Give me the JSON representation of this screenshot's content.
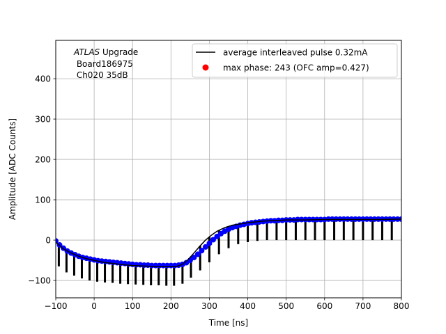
{
  "chart_data": {
    "type": "line",
    "title": "",
    "xlabel": "Time [ns]",
    "ylabel": "Amplitude [ADC Counts]",
    "xlim": [
      -100,
      800
    ],
    "ylim": [
      -143,
      495
    ],
    "x_ticks": [
      -100,
      0,
      100,
      200,
      300,
      400,
      500,
      600,
      700,
      800
    ],
    "y_ticks": [
      -100,
      0,
      100,
      200,
      300,
      400
    ],
    "grid": true,
    "legend_position": "top-right",
    "annotation": {
      "line1_italic": "ATLAS",
      "line1_rest": " Upgrade",
      "line2": " Board186975",
      "line3": " Ch020 35dB"
    },
    "series": [
      {
        "name": "average interleaved pulse 0.32mA",
        "style": "line",
        "color": "#000000",
        "curve": {
          "x": [
            -100,
            -80,
            -60,
            -40,
            -20,
            0,
            25,
            50,
            75,
            100,
            125,
            150,
            175,
            200,
            215,
            230,
            245,
            260,
            275,
            290,
            305,
            320,
            340,
            360,
            380,
            400,
            420,
            440,
            460,
            480,
            500,
            550,
            600,
            650,
            700,
            750,
            800
          ],
          "y": [
            -5,
            -22,
            -32,
            -40,
            -46,
            -50,
            -55,
            -58,
            -61,
            -63,
            -64,
            -65,
            -66,
            -66,
            -65,
            -60,
            -48,
            -32,
            -15,
            0,
            12,
            22,
            31,
            37,
            40,
            43,
            45,
            47,
            48,
            49,
            50,
            50,
            51,
            51,
            51,
            51,
            52
          ]
        },
        "spikes": {
          "x": [
            -92,
            -72,
            -52,
            -32,
            -12,
            8,
            28,
            48,
            68,
            88,
            108,
            128,
            148,
            168,
            188,
            208,
            230,
            252,
            276,
            300,
            325,
            350,
            375,
            400,
            425,
            450,
            475,
            500,
            525,
            550,
            575,
            600,
            625,
            650,
            675,
            700,
            725,
            750,
            775
          ],
          "bottom": [
            -65,
            -80,
            -88,
            -95,
            -100,
            -103,
            -105,
            -106,
            -108,
            -109,
            -110,
            -111,
            -112,
            -112,
            -113,
            -113,
            -108,
            -93,
            -75,
            -55,
            -35,
            -20,
            -10,
            -5,
            -2,
            0,
            0,
            0,
            0,
            0,
            0,
            0,
            0,
            0,
            0,
            0,
            0,
            0,
            0
          ]
        }
      },
      {
        "name": "max phase: 243 (OFC amp=0.427)",
        "style": "markers",
        "color": "#0000ff",
        "x": [
          -100,
          -90,
          -80,
          -70,
          -60,
          -50,
          -40,
          -30,
          -20,
          -10,
          0,
          10,
          20,
          30,
          40,
          50,
          60,
          70,
          80,
          90,
          100,
          110,
          120,
          130,
          140,
          150,
          160,
          170,
          180,
          190,
          200,
          210,
          220,
          230,
          240,
          250,
          260,
          270,
          280,
          290,
          300,
          310,
          320,
          330,
          340,
          350,
          360,
          370,
          380,
          390,
          400,
          410,
          420,
          430,
          440,
          450,
          460,
          470,
          480,
          490,
          500,
          510,
          520,
          530,
          540,
          550,
          560,
          570,
          580,
          590,
          600,
          610,
          620,
          630,
          640,
          650,
          660,
          670,
          680,
          690,
          700,
          710,
          720,
          730,
          740,
          750,
          760,
          770,
          780,
          790,
          800
        ],
        "y": [
          -2,
          -12,
          -20,
          -27,
          -32,
          -36,
          -40,
          -43,
          -45,
          -47,
          -49,
          -51,
          -52,
          -53,
          -54,
          -55,
          -56,
          -57,
          -58,
          -59,
          -60,
          -61,
          -61,
          -62,
          -62,
          -63,
          -63,
          -63,
          -63,
          -63,
          -63,
          -63,
          -62,
          -60,
          -56,
          -50,
          -43,
          -35,
          -26,
          -17,
          -8,
          1,
          9,
          16,
          22,
          27,
          31,
          34,
          37,
          39,
          41,
          43,
          44,
          45,
          46,
          47,
          48,
          48,
          49,
          49,
          50,
          50,
          50,
          51,
          51,
          51,
          51,
          51,
          51,
          51,
          51,
          52,
          52,
          52,
          52,
          52,
          52,
          52,
          52,
          52,
          52,
          52,
          52,
          52,
          52,
          52,
          52,
          52,
          52,
          52,
          52
        ]
      }
    ]
  }
}
